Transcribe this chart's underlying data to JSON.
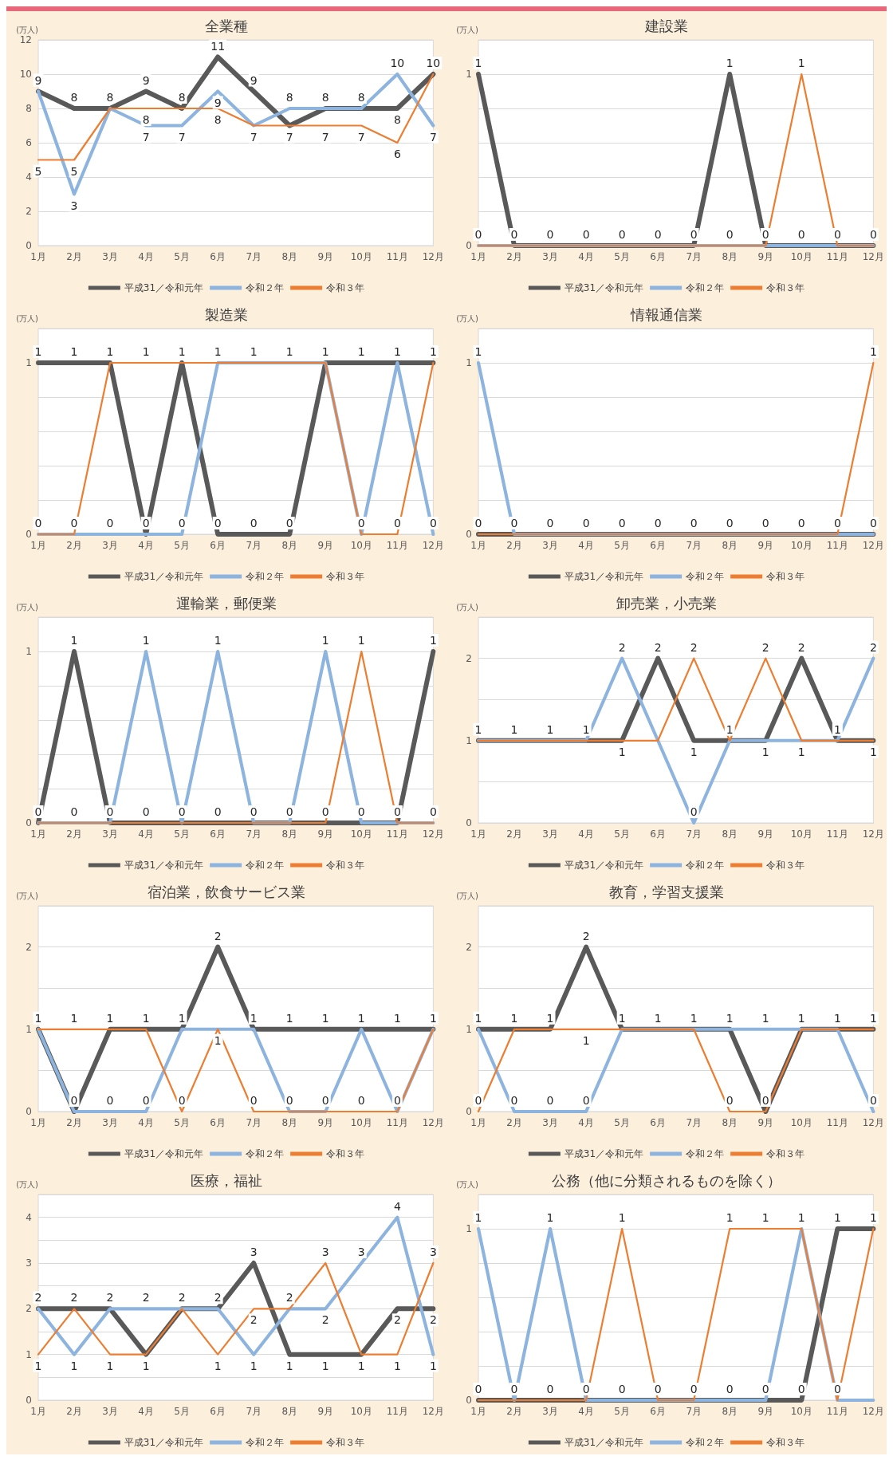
{
  "chart_data": [
    {
      "type": "line",
      "title": "全業種",
      "ylabel": "(万人)",
      "categories": [
        "1月",
        "2月",
        "3月",
        "4月",
        "5月",
        "6月",
        "7月",
        "8月",
        "9月",
        "10月",
        "11月",
        "12月"
      ],
      "ylim": [
        0,
        12
      ],
      "yticks": [
        0,
        2,
        4,
        6,
        8,
        10,
        12
      ],
      "grid": "y",
      "legend": "bottom",
      "marker": "none",
      "series": [
        {
          "name": "平成31／令和元年",
          "color": "#595959",
          "values": [
            9,
            8,
            8,
            9,
            8,
            11,
            9,
            7,
            8,
            8,
            8,
            10
          ],
          "value_labels": [
            "9",
            "8",
            "8",
            "9",
            "8",
            "11",
            "9",
            "7",
            "8",
            "8",
            "8",
            "10"
          ]
        },
        {
          "name": "令和２年",
          "color": "#8db3df",
          "values": [
            9,
            3,
            8,
            7,
            7,
            9,
            7,
            8,
            8,
            8,
            10,
            7
          ],
          "value_labels": [
            null,
            "3",
            null,
            "7",
            "7",
            "9",
            "7",
            "8",
            null,
            null,
            "10",
            "7"
          ]
        },
        {
          "name": "令和３年",
          "color": "#ed7d31",
          "values": [
            5,
            5,
            8,
            8,
            8,
            8,
            7,
            7,
            7,
            7,
            6,
            10
          ],
          "value_labels": [
            "5",
            "5",
            null,
            "8",
            null,
            "8",
            null,
            null,
            "7",
            "7",
            "6",
            null
          ]
        }
      ]
    },
    {
      "type": "line",
      "title": "建設業",
      "ylabel": "(万人)",
      "categories": [
        "1月",
        "2月",
        "3月",
        "4月",
        "5月",
        "6月",
        "7月",
        "8月",
        "9月",
        "10月",
        "11月",
        "12月"
      ],
      "ylim": [
        0,
        1.2
      ],
      "yticks": [
        0,
        {
          "value": 0.2,
          "label": null
        },
        {
          "value": 0.4,
          "label": null
        },
        {
          "value": 0.6,
          "label": null
        },
        {
          "value": 0.8,
          "label": null
        },
        1,
        {
          "value": 1.2,
          "label": null
        }
      ],
      "grid": "y",
      "legend": "bottom",
      "marker": "none",
      "series": [
        {
          "name": "平成31／令和元年",
          "color": "#595959",
          "values": [
            1,
            0,
            0,
            0,
            0,
            0,
            0,
            1,
            0,
            0,
            0,
            0
          ],
          "value_labels": [
            "1",
            "0",
            "0",
            "0",
            "0",
            "0",
            "0",
            "1",
            "0",
            "0",
            "0",
            "0"
          ]
        },
        {
          "name": "令和２年",
          "color": "#8db3df",
          "values": [
            0,
            0,
            0,
            0,
            0,
            0,
            0,
            0,
            0,
            0,
            0,
            0
          ],
          "value_labels": [
            "0",
            null,
            null,
            null,
            null,
            null,
            null,
            "0",
            null,
            null,
            null,
            null
          ]
        },
        {
          "name": "令和３年",
          "color": "#ed7d31",
          "values": [
            0,
            0,
            0,
            0,
            0,
            0,
            0,
            0,
            0,
            1,
            0,
            0
          ],
          "value_labels": [
            null,
            null,
            null,
            null,
            null,
            null,
            null,
            null,
            null,
            "1",
            null,
            null
          ]
        }
      ]
    },
    {
      "type": "line",
      "title": "製造業",
      "ylabel": "(万人)",
      "categories": [
        "1月",
        "2月",
        "3月",
        "4月",
        "5月",
        "6月",
        "7月",
        "8月",
        "9月",
        "10月",
        "11月",
        "12月"
      ],
      "ylim": [
        0,
        1.2
      ],
      "yticks": [
        0,
        {
          "value": 0.2,
          "label": null
        },
        {
          "value": 0.4,
          "label": null
        },
        {
          "value": 0.6,
          "label": null
        },
        {
          "value": 0.8,
          "label": null
        },
        1,
        {
          "value": 1.2,
          "label": null
        }
      ],
      "grid": "y",
      "legend": "bottom",
      "marker": "none",
      "series": [
        {
          "name": "平成31／令和元年",
          "color": "#595959",
          "values": [
            1,
            1,
            1,
            0,
            1,
            0,
            0,
            0,
            1,
            1,
            1,
            1
          ],
          "value_labels": [
            "1",
            "1",
            "1",
            "0",
            "1",
            "0",
            "0",
            "0",
            "1",
            "1",
            "1",
            "1"
          ]
        },
        {
          "name": "令和２年",
          "color": "#8db3df",
          "values": [
            0,
            0,
            0,
            0,
            0,
            1,
            1,
            1,
            1,
            0,
            1,
            0
          ],
          "value_labels": [
            "0",
            "0",
            "0",
            null,
            "0",
            "1",
            "1",
            "1",
            null,
            "0",
            null,
            "0"
          ]
        },
        {
          "name": "令和３年",
          "color": "#ed7d31",
          "values": [
            0,
            0,
            1,
            1,
            1,
            1,
            1,
            1,
            1,
            0,
            0,
            1
          ],
          "value_labels": [
            null,
            null,
            null,
            "1",
            null,
            null,
            null,
            null,
            null,
            null,
            "0",
            null
          ]
        }
      ]
    },
    {
      "type": "line",
      "title": "情報通信業",
      "ylabel": "(万人)",
      "categories": [
        "1月",
        "2月",
        "3月",
        "4月",
        "5月",
        "6月",
        "7月",
        "8月",
        "9月",
        "10月",
        "11月",
        "12月"
      ],
      "ylim": [
        0,
        1.2
      ],
      "yticks": [
        0,
        {
          "value": 0.2,
          "label": null
        },
        {
          "value": 0.4,
          "label": null
        },
        {
          "value": 0.6,
          "label": null
        },
        {
          "value": 0.8,
          "label": null
        },
        1,
        {
          "value": 1.2,
          "label": null
        }
      ],
      "grid": "y",
      "legend": "bottom",
      "marker": "none",
      "series": [
        {
          "name": "平成31／令和元年",
          "color": "#595959",
          "values": [
            0,
            0,
            0,
            0,
            0,
            0,
            0,
            0,
            0,
            0,
            0,
            0
          ],
          "value_labels": [
            "0",
            "0",
            "0",
            "0",
            "0",
            "0",
            "0",
            "0",
            "0",
            "0",
            "0",
            "0"
          ]
        },
        {
          "name": "令和２年",
          "color": "#8db3df",
          "values": [
            1,
            0,
            0,
            0,
            0,
            0,
            0,
            0,
            0,
            0,
            0,
            0
          ],
          "value_labels": [
            "1",
            null,
            null,
            null,
            null,
            null,
            null,
            null,
            null,
            null,
            null,
            null
          ]
        },
        {
          "name": "令和３年",
          "color": "#ed7d31",
          "values": [
            0,
            0,
            0,
            0,
            0,
            0,
            0,
            0,
            0,
            0,
            0,
            1
          ],
          "value_labels": [
            null,
            null,
            null,
            null,
            null,
            null,
            null,
            null,
            null,
            null,
            null,
            "1"
          ]
        }
      ]
    },
    {
      "type": "line",
      "title": "運輸業，郵便業",
      "ylabel": "(万人)",
      "categories": [
        "1月",
        "2月",
        "3月",
        "4月",
        "5月",
        "6月",
        "7月",
        "8月",
        "9月",
        "10月",
        "11月",
        "12月"
      ],
      "ylim": [
        0,
        1.2
      ],
      "yticks": [
        0,
        {
          "value": 0.2,
          "label": null
        },
        {
          "value": 0.4,
          "label": null
        },
        {
          "value": 0.6,
          "label": null
        },
        {
          "value": 0.8,
          "label": null
        },
        1,
        {
          "value": 1.2,
          "label": null
        }
      ],
      "grid": "y",
      "legend": "bottom",
      "marker": "none",
      "series": [
        {
          "name": "平成31／令和元年",
          "color": "#595959",
          "values": [
            0,
            1,
            0,
            0,
            0,
            0,
            0,
            0,
            0,
            0,
            0,
            1
          ],
          "value_labels": [
            "0",
            "1",
            "0",
            "0",
            "0",
            "0",
            "0",
            "0",
            "0",
            "0",
            "0",
            "1"
          ]
        },
        {
          "name": "令和２年",
          "color": "#8db3df",
          "values": [
            0,
            0,
            0,
            1,
            0,
            1,
            0,
            0,
            1,
            0,
            0,
            0
          ],
          "value_labels": [
            null,
            "0",
            null,
            "1",
            null,
            "1",
            null,
            null,
            "1",
            null,
            null,
            "0"
          ]
        },
        {
          "name": "令和３年",
          "color": "#ed7d31",
          "values": [
            0,
            0,
            0,
            0,
            0,
            0,
            0,
            0,
            0,
            1,
            0,
            0
          ],
          "value_labels": [
            null,
            null,
            null,
            null,
            null,
            null,
            null,
            null,
            null,
            "1",
            null,
            null
          ]
        }
      ]
    },
    {
      "type": "line",
      "title": "卸売業，小売業",
      "ylabel": "(万人)",
      "categories": [
        "1月",
        "2月",
        "3月",
        "4月",
        "5月",
        "6月",
        "7月",
        "8月",
        "9月",
        "10月",
        "11月",
        "12月"
      ],
      "ylim": [
        0,
        2.5
      ],
      "yticks": [
        0,
        {
          "value": 0.5,
          "label": null
        },
        1,
        {
          "value": 1.5,
          "label": null
        },
        2,
        {
          "value": 2.5,
          "label": null
        }
      ],
      "grid": "y",
      "legend": "bottom",
      "marker": "none",
      "series": [
        {
          "name": "平成31／令和元年",
          "color": "#595959",
          "values": [
            1,
            1,
            1,
            1,
            1,
            2,
            1,
            1,
            1,
            2,
            1,
            1
          ],
          "value_labels": [
            "1",
            "1",
            "1",
            "1",
            "1",
            "2",
            "1",
            "1",
            "1",
            "2",
            "1",
            "1"
          ]
        },
        {
          "name": "令和２年",
          "color": "#8db3df",
          "values": [
            1,
            1,
            1,
            1,
            2,
            1,
            0,
            1,
            1,
            1,
            1,
            2
          ],
          "value_labels": [
            null,
            null,
            null,
            null,
            "2",
            null,
            "0",
            null,
            null,
            "1",
            null,
            "2"
          ]
        },
        {
          "name": "令和３年",
          "color": "#ed7d31",
          "values": [
            1,
            1,
            1,
            1,
            1,
            1,
            2,
            1,
            2,
            1,
            1,
            1
          ],
          "value_labels": [
            null,
            null,
            null,
            null,
            null,
            null,
            "2",
            null,
            "2",
            null,
            null,
            null
          ]
        }
      ]
    },
    {
      "type": "line",
      "title": "宿泊業，飲食サービス業",
      "ylabel": "(万人)",
      "categories": [
        "1月",
        "2月",
        "3月",
        "4月",
        "5月",
        "6月",
        "7月",
        "8月",
        "9月",
        "10月",
        "11月",
        "12月"
      ],
      "ylim": [
        0,
        2.5
      ],
      "yticks": [
        0,
        {
          "value": 0.5,
          "label": null
        },
        1,
        {
          "value": 1.5,
          "label": null
        },
        2,
        {
          "value": 2.5,
          "label": null
        }
      ],
      "grid": "y",
      "legend": "bottom",
      "marker": "none",
      "series": [
        {
          "name": "平成31／令和元年",
          "color": "#595959",
          "values": [
            1,
            0,
            1,
            1,
            1,
            2,
            1,
            1,
            1,
            1,
            1,
            1
          ],
          "value_labels": [
            "1",
            "0",
            "1",
            "1",
            "1",
            "2",
            "1",
            "1",
            "1",
            "1",
            "1",
            "1"
          ]
        },
        {
          "name": "令和２年",
          "color": "#8db3df",
          "values": [
            1,
            0,
            0,
            0,
            1,
            1,
            1,
            0,
            0,
            1,
            0,
            1
          ],
          "value_labels": [
            null,
            null,
            "0",
            "0",
            null,
            "1",
            null,
            "0",
            "0",
            null,
            "0",
            null
          ]
        },
        {
          "name": "令和３年",
          "color": "#ed7d31",
          "values": [
            1,
            1,
            1,
            1,
            0,
            1,
            0,
            0,
            0,
            0,
            0,
            1
          ],
          "value_labels": [
            null,
            "1",
            null,
            null,
            "0",
            null,
            "0",
            null,
            null,
            "0",
            null,
            null
          ]
        }
      ]
    },
    {
      "type": "line",
      "title": "教育，学習支援業",
      "ylabel": "(万人)",
      "categories": [
        "1月",
        "2月",
        "3月",
        "4月",
        "5月",
        "6月",
        "7月",
        "8月",
        "9月",
        "10月",
        "11月",
        "12月"
      ],
      "ylim": [
        0,
        2.5
      ],
      "yticks": [
        0,
        {
          "value": 0.5,
          "label": null
        },
        1,
        {
          "value": 1.5,
          "label": null
        },
        2,
        {
          "value": 2.5,
          "label": null
        }
      ],
      "grid": "y",
      "legend": "bottom",
      "marker": "none",
      "series": [
        {
          "name": "平成31／令和元年",
          "color": "#595959",
          "values": [
            1,
            1,
            1,
            2,
            1,
            1,
            1,
            1,
            0,
            1,
            1,
            1
          ],
          "value_labels": [
            "1",
            "1",
            "1",
            "2",
            "1",
            "1",
            "1",
            "1",
            "0",
            "1",
            "1",
            "1"
          ]
        },
        {
          "name": "令和２年",
          "color": "#8db3df",
          "values": [
            1,
            0,
            0,
            0,
            1,
            1,
            1,
            1,
            1,
            1,
            1,
            0
          ],
          "value_labels": [
            null,
            "0",
            "0",
            "0",
            null,
            null,
            null,
            null,
            "1",
            null,
            null,
            "0"
          ]
        },
        {
          "name": "令和３年",
          "color": "#ed7d31",
          "values": [
            0,
            1,
            1,
            1,
            1,
            1,
            1,
            0,
            0,
            1,
            1,
            1
          ],
          "value_labels": [
            "0",
            null,
            null,
            "1",
            null,
            null,
            null,
            "0",
            null,
            null,
            null,
            null
          ]
        }
      ]
    },
    {
      "type": "line",
      "title": "医療，福祉",
      "ylabel": "(万人)",
      "categories": [
        "1月",
        "2月",
        "3月",
        "4月",
        "5月",
        "6月",
        "7月",
        "8月",
        "9月",
        "10月",
        "11月",
        "12月"
      ],
      "ylim": [
        0,
        4.5
      ],
      "yticks": [
        0,
        {
          "value": 0.5,
          "label": null
        },
        1,
        {
          "value": 1.5,
          "label": null
        },
        2,
        {
          "value": 2.5,
          "label": null
        },
        3,
        {
          "value": 3.5,
          "label": null
        },
        4,
        {
          "value": 4.5,
          "label": null
        }
      ],
      "grid": "y",
      "legend": "bottom",
      "marker": "none",
      "series": [
        {
          "name": "平成31／令和元年",
          "color": "#595959",
          "values": [
            2,
            2,
            2,
            1,
            2,
            2,
            3,
            1,
            1,
            1,
            2,
            2
          ],
          "value_labels": [
            "2",
            "2",
            "2",
            "1",
            "2",
            "2",
            "3",
            "1",
            "1",
            "1",
            "2",
            "2"
          ]
        },
        {
          "name": "令和２年",
          "color": "#8db3df",
          "values": [
            2,
            1,
            2,
            2,
            2,
            2,
            1,
            2,
            2,
            3,
            4,
            1
          ],
          "value_labels": [
            null,
            "1",
            null,
            "2",
            null,
            null,
            "1",
            "2",
            "2",
            "3",
            "4",
            "1"
          ]
        },
        {
          "name": "令和３年",
          "color": "#ed7d31",
          "values": [
            1,
            2,
            1,
            1,
            2,
            1,
            2,
            2,
            3,
            1,
            1,
            3
          ],
          "value_labels": [
            "1",
            null,
            "1",
            null,
            null,
            "1",
            "2",
            null,
            "3",
            null,
            "1",
            "3"
          ]
        }
      ]
    },
    {
      "type": "line",
      "title": "公務（他に分類されるものを除く）",
      "ylabel": "(万人)",
      "categories": [
        "1月",
        "2月",
        "3月",
        "4月",
        "5月",
        "6月",
        "7月",
        "8月",
        "9月",
        "10月",
        "11月",
        "12月"
      ],
      "ylim": [
        0,
        1.2
      ],
      "yticks": [
        0,
        {
          "value": 0.2,
          "label": null
        },
        {
          "value": 0.4,
          "label": null
        },
        {
          "value": 0.6,
          "label": null
        },
        {
          "value": 0.8,
          "label": null
        },
        1,
        {
          "value": 1.2,
          "label": null
        }
      ],
      "grid": "y",
      "legend": "bottom",
      "marker": "none",
      "series": [
        {
          "name": "平成31／令和元年",
          "color": "#595959",
          "values": [
            0,
            0,
            0,
            0,
            0,
            0,
            0,
            0,
            0,
            0,
            1,
            1
          ],
          "value_labels": [
            "0",
            "0",
            "0",
            "0",
            "0",
            "0",
            "0",
            "0",
            "0",
            "0",
            "1",
            "1"
          ]
        },
        {
          "name": "令和２年",
          "color": "#8db3df",
          "values": [
            1,
            0,
            1,
            0,
            0,
            0,
            0,
            0,
            0,
            1,
            0,
            0
          ],
          "value_labels": [
            "1",
            null,
            "1",
            null,
            null,
            null,
            null,
            null,
            null,
            "1",
            "0",
            null
          ]
        },
        {
          "name": "令和３年",
          "color": "#ed7d31",
          "values": [
            0,
            0,
            0,
            0,
            1,
            0,
            0,
            1,
            1,
            1,
            0,
            1
          ],
          "value_labels": [
            null,
            null,
            null,
            null,
            "1",
            null,
            null,
            "1",
            "1",
            null,
            null,
            null
          ]
        }
      ]
    }
  ]
}
